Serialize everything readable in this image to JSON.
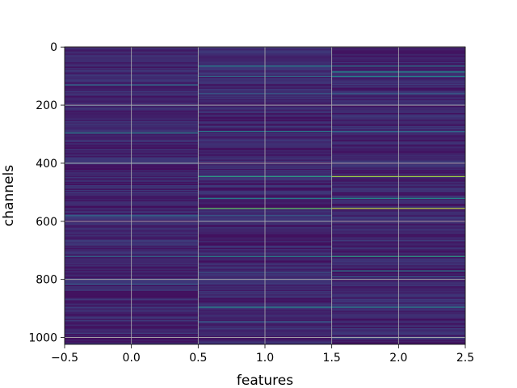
{
  "chart_data": {
    "type": "heatmap",
    "xlabel": "features",
    "ylabel": "channels",
    "x_ticks": [
      "−0.5",
      "0.0",
      "0.5",
      "1.0",
      "1.5",
      "2.0",
      "2.5"
    ],
    "x_tick_values": [
      -0.5,
      0.0,
      0.5,
      1.0,
      1.5,
      2.0,
      2.5
    ],
    "y_ticks": [
      "0",
      "200",
      "400",
      "600",
      "800",
      "1000"
    ],
    "y_tick_values": [
      0,
      200,
      400,
      600,
      800,
      1000
    ],
    "xlim": [
      -0.5,
      2.5
    ],
    "ylim": [
      1023.5,
      -0.5
    ],
    "columns": 3,
    "rows": 1024,
    "colormap": "viridis",
    "grid": true,
    "background_level": 0.1,
    "highlights": [
      {
        "column": 0,
        "channel": 130,
        "level": 0.35
      },
      {
        "column": 0,
        "channel": 200,
        "level": 0.25
      },
      {
        "column": 0,
        "channel": 295,
        "level": 0.45
      },
      {
        "column": 0,
        "channel": 400,
        "level": 0.25
      },
      {
        "column": 0,
        "channel": 580,
        "level": 0.35
      },
      {
        "column": 0,
        "channel": 720,
        "level": 0.35
      },
      {
        "column": 0,
        "channel": 815,
        "level": 0.3
      },
      {
        "column": 1,
        "channel": 65,
        "level": 0.45
      },
      {
        "column": 1,
        "channel": 100,
        "level": 0.35
      },
      {
        "column": 1,
        "channel": 160,
        "level": 0.3
      },
      {
        "column": 1,
        "channel": 290,
        "level": 0.4
      },
      {
        "column": 1,
        "channel": 445,
        "level": 0.55
      },
      {
        "column": 1,
        "channel": 520,
        "level": 0.45
      },
      {
        "column": 1,
        "channel": 555,
        "level": 0.75
      },
      {
        "column": 1,
        "channel": 580,
        "level": 0.3
      },
      {
        "column": 1,
        "channel": 720,
        "level": 0.45
      },
      {
        "column": 1,
        "channel": 775,
        "level": 0.3
      },
      {
        "column": 1,
        "channel": 895,
        "level": 0.45
      },
      {
        "column": 1,
        "channel": 945,
        "level": 0.3
      },
      {
        "column": 2,
        "channel": 65,
        "level": 0.4
      },
      {
        "column": 2,
        "channel": 85,
        "level": 0.5
      },
      {
        "column": 2,
        "channel": 100,
        "level": 0.45
      },
      {
        "column": 2,
        "channel": 160,
        "level": 0.3
      },
      {
        "column": 2,
        "channel": 290,
        "level": 0.35
      },
      {
        "column": 2,
        "channel": 445,
        "level": 0.85
      },
      {
        "column": 2,
        "channel": 520,
        "level": 0.5
      },
      {
        "column": 2,
        "channel": 555,
        "level": 0.9
      },
      {
        "column": 2,
        "channel": 720,
        "level": 0.55
      },
      {
        "column": 2,
        "channel": 770,
        "level": 0.4
      },
      {
        "column": 2,
        "channel": 790,
        "level": 0.3
      },
      {
        "column": 2,
        "channel": 895,
        "level": 0.45
      },
      {
        "column": 2,
        "channel": 1000,
        "level": 0.35
      }
    ]
  }
}
